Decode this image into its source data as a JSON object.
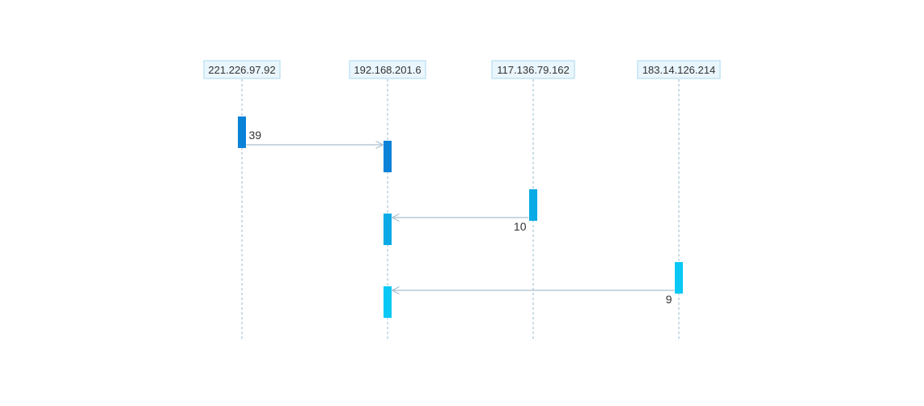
{
  "participants": [
    {
      "id": "p1",
      "label": "221.226.97.92"
    },
    {
      "id": "p2",
      "label": "192.168.201.6"
    },
    {
      "id": "p3",
      "label": "117.136.79.162"
    },
    {
      "id": "p4",
      "label": "183.14.126.214"
    }
  ],
  "messages": [
    {
      "from": "p1",
      "to": "p2",
      "label": "39",
      "color": "#0a82d8"
    },
    {
      "from": "p3",
      "to": "p2",
      "label": "10",
      "color": "#0aaae6"
    },
    {
      "from": "p4",
      "to": "p2",
      "label": "9",
      "color": "#0ac8f5"
    }
  ],
  "colors": {
    "participant_fill": "#eaf6fd",
    "participant_stroke": "#a9d8f2",
    "lifeline": "#a8c4d6",
    "message_line": "#a9bfcf"
  }
}
